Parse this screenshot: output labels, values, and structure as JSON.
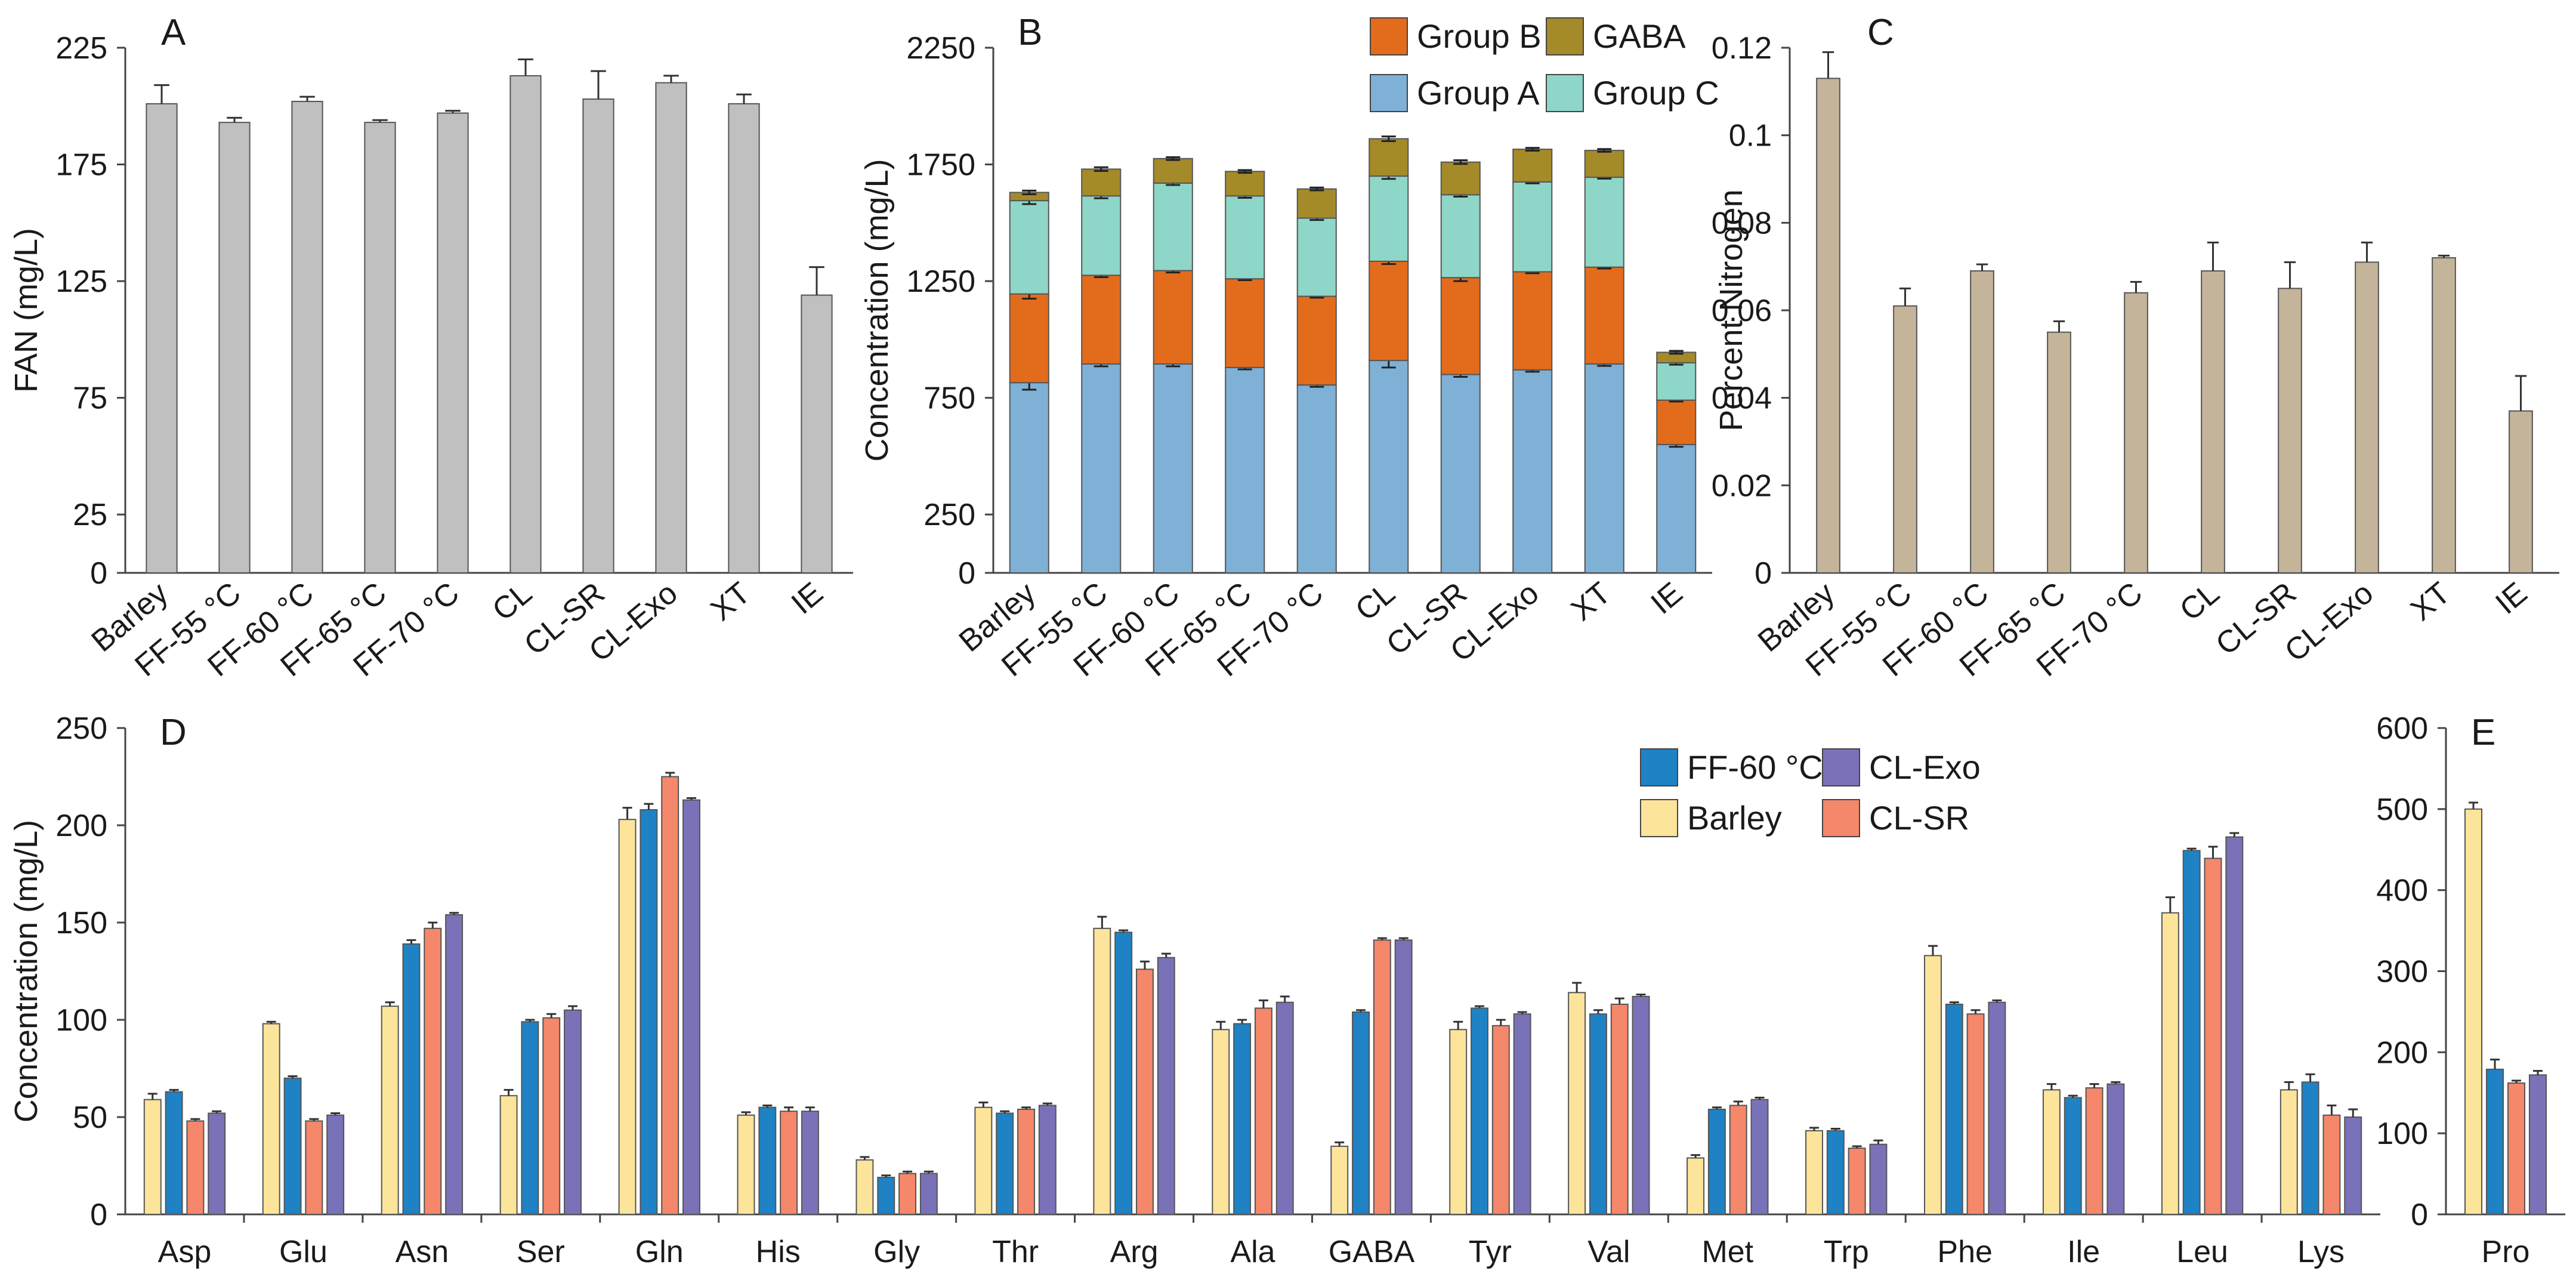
{
  "chart_data": [
    {
      "id": "A",
      "type": "bar",
      "panel_label": "A",
      "ylabel": "FAN (mg/L)",
      "ylim": [
        0,
        225
      ],
      "yticks": [
        0,
        25,
        75,
        125,
        175,
        225
      ],
      "categories": [
        "Barley",
        "FF-55 °C",
        "FF-60 °C",
        "FF-65 °C",
        "FF-70 °C",
        "CL",
        "CL-SR",
        "CL-Exo",
        "XT",
        "IE"
      ],
      "series": [
        {
          "name": "FAN",
          "color": "#c0c0c0",
          "values": [
            201,
            193,
            202,
            193,
            197,
            213,
            203,
            210,
            201,
            119
          ],
          "errors": [
            8,
            2,
            2,
            1,
            1,
            7,
            12,
            3,
            4,
            12
          ]
        }
      ]
    },
    {
      "id": "B",
      "type": "bar",
      "stacked": true,
      "panel_label": "B",
      "ylabel": "Concentration (mg/L)",
      "ylim": [
        0,
        2250
      ],
      "yticks": [
        0,
        250,
        750,
        1250,
        1750,
        2250
      ],
      "categories": [
        "Barley",
        "FF-55 °C",
        "FF-60 °C",
        "FF-65 °C",
        "FF-70 °C",
        "CL",
        "CL-SR",
        "CL-Exo",
        "XT",
        "IE"
      ],
      "legend": {
        "placement": "top-right",
        "entries": [
          "Group B",
          "GABA",
          "Group A",
          "Group C"
        ]
      },
      "series": [
        {
          "name": "Group A",
          "color": "#7fb0d6",
          "values": [
            815,
            895,
            895,
            880,
            805,
            910,
            850,
            870,
            895,
            550
          ],
          "errors": [
            30,
            10,
            10,
            8,
            8,
            30,
            10,
            8,
            8,
            10
          ]
        },
        {
          "name": "Group B",
          "color": "#e36c1c",
          "values": [
            380,
            380,
            400,
            380,
            380,
            425,
            415,
            420,
            415,
            190
          ],
          "errors": [
            20,
            8,
            8,
            6,
            6,
            12,
            15,
            6,
            6,
            6
          ]
        },
        {
          "name": "Group C",
          "color": "#8ed6c8",
          "values": [
            400,
            340,
            375,
            355,
            335,
            365,
            355,
            385,
            385,
            160
          ],
          "errors": [
            15,
            10,
            8,
            8,
            8,
            12,
            8,
            6,
            6,
            8
          ]
        },
        {
          "name": "GABA",
          "color": "#a58a2a",
          "values": [
            35,
            115,
            105,
            105,
            125,
            160,
            140,
            140,
            115,
            45
          ],
          "errors": [
            8,
            8,
            6,
            6,
            6,
            10,
            8,
            6,
            6,
            6
          ]
        }
      ]
    },
    {
      "id": "C",
      "type": "bar",
      "panel_label": "C",
      "ylabel": "Percent Nitrogen",
      "ylim": [
        0,
        0.12
      ],
      "yticks": [
        "0",
        "0.02",
        "0.04",
        "0.06",
        "0.08",
        "0.1",
        "0.12"
      ],
      "categories": [
        "Barley",
        "FF-55 °C",
        "FF-60 °C",
        "FF-65 °C",
        "FF-70 °C",
        "CL",
        "CL-SR",
        "CL-Exo",
        "XT",
        "IE"
      ],
      "series": [
        {
          "name": "Percent Nitrogen",
          "color": "#c4b49a",
          "values": [
            0.113,
            0.061,
            0.069,
            0.055,
            0.064,
            0.069,
            0.065,
            0.071,
            0.072,
            0.037
          ],
          "errors": [
            0.006,
            0.004,
            0.0015,
            0.0025,
            0.0025,
            0.0065,
            0.006,
            0.0045,
            0.0005,
            0.008
          ]
        }
      ]
    },
    {
      "id": "D",
      "type": "bar",
      "panel_label": "D",
      "ylabel": "Concentration (mg/L)",
      "ylim": [
        0,
        250
      ],
      "yticks": [
        0,
        50,
        100,
        150,
        200,
        250
      ],
      "categories": [
        "Asp",
        "Glu",
        "Asn",
        "Ser",
        "Gln",
        "His",
        "Gly",
        "Thr",
        "Arg",
        "Ala",
        "GABA",
        "Tyr",
        "Val",
        "Met",
        "Trp",
        "Phe",
        "Ile",
        "Leu",
        "Lys"
      ],
      "legend": {
        "placement": "top-right",
        "entries": [
          "FF-60 °C",
          "CL-Exo",
          "Barley",
          "CL-SR"
        ]
      },
      "series": [
        {
          "name": "Barley",
          "color": "#fce49a",
          "values": [
            59,
            98,
            107,
            61,
            203,
            51,
            28,
            55,
            147,
            95,
            35,
            95,
            114,
            29,
            43,
            133,
            64,
            155,
            64
          ],
          "errors": [
            3,
            1,
            2,
            3,
            6,
            1.5,
            1.5,
            2.5,
            6,
            4,
            2,
            4,
            5,
            1.5,
            1.5,
            5,
            3,
            8,
            4
          ]
        },
        {
          "name": "FF-60 °C",
          "color": "#1e82c4",
          "values": [
            63,
            70,
            139,
            99,
            208,
            55,
            19,
            52,
            145,
            98,
            104,
            106,
            103,
            54,
            43,
            108,
            60,
            187,
            68
          ],
          "errors": [
            1,
            1,
            2,
            1,
            3,
            1,
            1,
            1,
            1,
            2,
            1,
            1,
            2,
            1,
            1,
            1,
            1,
            1,
            4
          ]
        },
        {
          "name": "CL-SR",
          "color": "#f5876a",
          "values": [
            48,
            48,
            147,
            101,
            225,
            53,
            21,
            54,
            126,
            106,
            141,
            97,
            108,
            56,
            34,
            103,
            65,
            183,
            51
          ],
          "errors": [
            1,
            1,
            3,
            2,
            2,
            2,
            1,
            1,
            4,
            4,
            1,
            3,
            3,
            2,
            1,
            2,
            2,
            6,
            5
          ]
        },
        {
          "name": "CL-Exo",
          "color": "#7a72b8",
          "values": [
            52,
            51,
            154,
            105,
            213,
            53,
            21,
            56,
            132,
            109,
            141,
            103,
            112,
            59,
            36,
            109,
            67,
            194,
            50
          ],
          "errors": [
            1,
            1,
            1,
            2,
            1,
            2,
            1,
            1,
            2,
            3,
            1,
            1,
            1,
            1,
            2,
            1,
            1,
            2,
            4
          ]
        }
      ]
    },
    {
      "id": "E",
      "type": "bar",
      "panel_label": "E",
      "ylabel": "",
      "ylim": [
        0,
        600
      ],
      "yticks": [
        0,
        100,
        200,
        300,
        400,
        500,
        600
      ],
      "categories": [
        "Pro"
      ],
      "series": [
        {
          "name": "Barley",
          "color": "#fce49a",
          "values": [
            500
          ],
          "errors": [
            8
          ]
        },
        {
          "name": "FF-60 °C",
          "color": "#1e82c4",
          "values": [
            179
          ],
          "errors": [
            12
          ]
        },
        {
          "name": "CL-SR",
          "color": "#f5876a",
          "values": [
            162
          ],
          "errors": [
            3
          ]
        },
        {
          "name": "CL-Exo",
          "color": "#7a72b8",
          "values": [
            172
          ],
          "errors": [
            5
          ]
        }
      ]
    }
  ]
}
